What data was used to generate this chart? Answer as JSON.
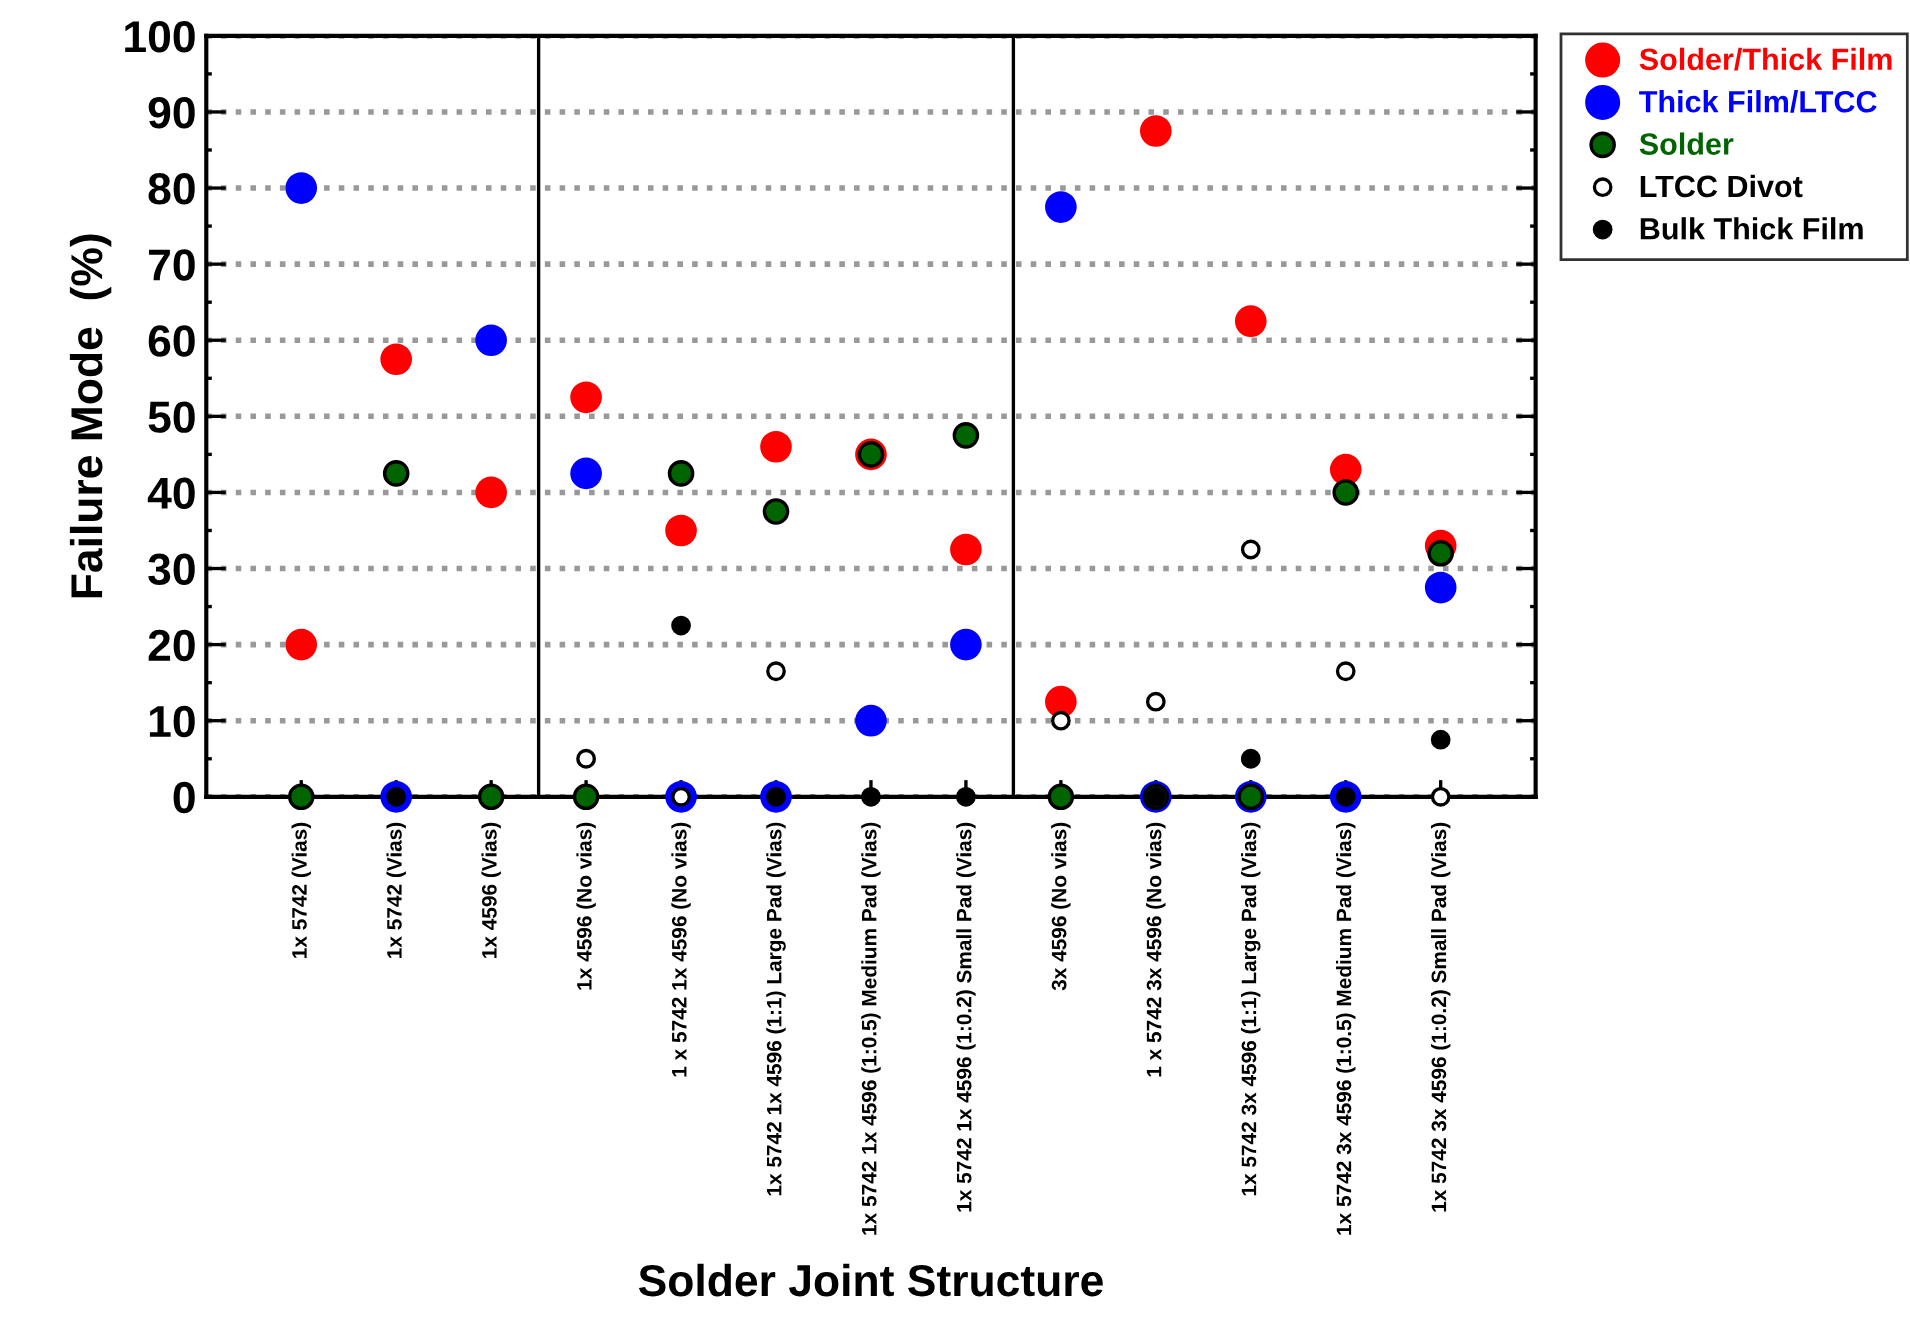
{
  "chart_data": {
    "type": "scatter",
    "xlabel": "Solder Joint Structure",
    "ylabel": "Failure Mode  (%)",
    "categories": [
      "1x 5742 (Vias)",
      "1x 5742 (Vias)",
      "1x 4596 (Vias)",
      "1x 4596 (No vias)",
      "1 x 5742 1x 4596 (No vias)",
      "1x 5742 1x 4596 (1:1) Large Pad (Vias)",
      "1x 5742 1x 4596 (1:0.5) Medium Pad (Vias)",
      "1x 5742 1x 4596 (1:0.2) Small Pad (Vias)",
      "3x 4596 (No vias)",
      "1 x 5742 3x 4596 (No vias)",
      "1x 5742 3x 4596 (1:1) Large Pad (Vias)",
      "1x 5742 3x 4596 (1:0.5) Medium Pad (Vias)",
      "1x 5742 3x 4596 (1:0.2) Small Pad (Vias)"
    ],
    "series": [
      {
        "name": "Solder/Thick Film",
        "color": "#ff0000",
        "values": [
          20,
          57.5,
          40,
          52.5,
          35,
          46,
          45,
          32.5,
          12.5,
          87.5,
          62.5,
          43,
          33
        ]
      },
      {
        "name": "Thick Film/LTCC",
        "color": "#0000ff",
        "values": [
          80,
          0,
          60,
          42.5,
          0,
          0,
          10,
          20,
          77.5,
          0,
          0,
          0,
          27.5
        ]
      },
      {
        "name": "Solder",
        "color": "#006400",
        "values": [
          0,
          42.5,
          0,
          0,
          42.5,
          37.5,
          45,
          47.5,
          0,
          0,
          0,
          40,
          32
        ]
      },
      {
        "name": "LTCC Divot",
        "color": "#ffffff",
        "values": [
          null,
          null,
          null,
          5,
          0,
          16.5,
          null,
          null,
          10,
          12.5,
          32.5,
          16.5,
          0
        ]
      },
      {
        "name": "Bulk Thick Film",
        "color": "#000000",
        "values": [
          null,
          0,
          null,
          null,
          22.5,
          0,
          0,
          0,
          null,
          0,
          5,
          0,
          7.5
        ]
      }
    ],
    "ylim": [
      0,
      100
    ],
    "yticks": [
      0,
      10,
      20,
      30,
      40,
      50,
      60,
      70,
      80,
      90,
      100
    ],
    "grid": "y",
    "legend": "top right",
    "marker": "circle"
  }
}
